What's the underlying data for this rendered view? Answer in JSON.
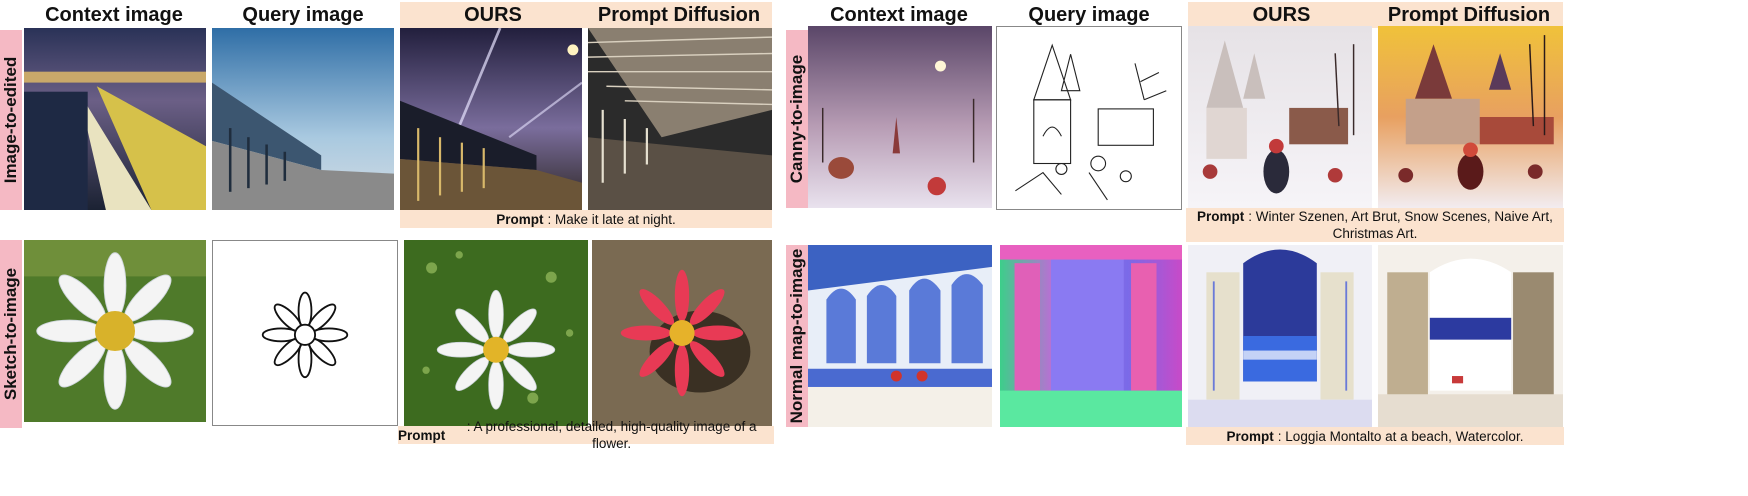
{
  "headers": {
    "context": "Context image",
    "query": "Query image",
    "ours": "OURS",
    "prompt_diffusion": "Prompt Diffusion"
  },
  "tasks": {
    "image_to_edited": "Image-to-edited",
    "sketch_to_image": "Sketch-to-image",
    "canny_to_image": "Canny-to-image",
    "normal_map_to_image": "Normal map-to-image"
  },
  "prompts": {
    "label": "Prompt",
    "image_to_edited": ": Make it late at night.",
    "sketch_to_image": ": A professional, detailed, high-quality image of a flower.",
    "canny_to_image": ": Winter Szenen, Art Brut, Snow Scenes, Naive Art, Christmas Art.",
    "normal_map_to_image": ": Loggia Montalto at a beach, Watercolor."
  }
}
